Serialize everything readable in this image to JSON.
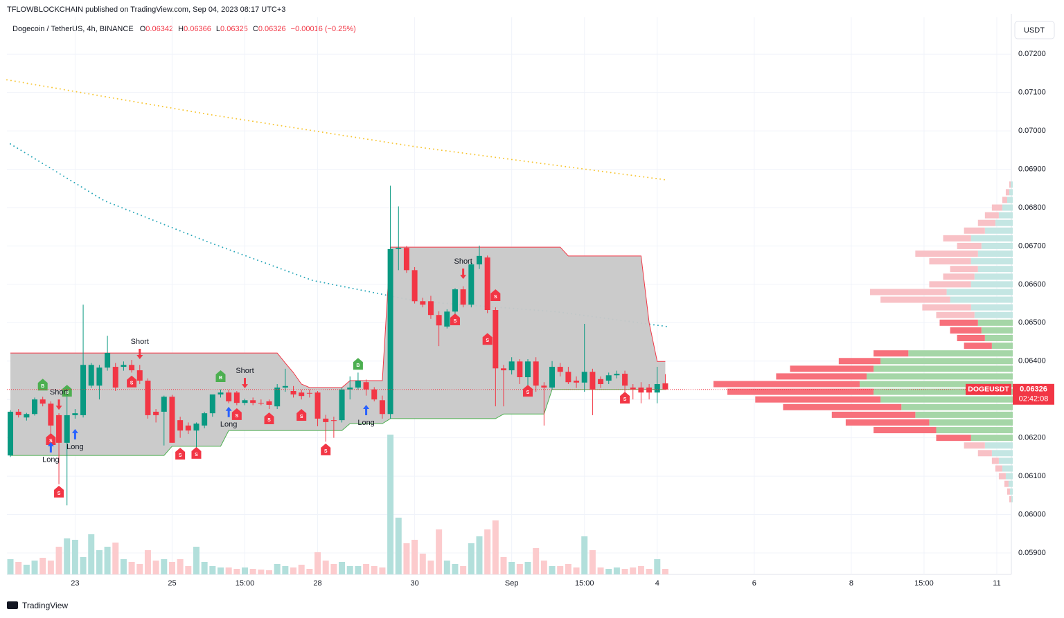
{
  "header": {
    "publisher": "TFLOWBLOCKCHAIN published on TradingView.com, Sep 04, 2023 08:17 UTC+3",
    "logo": "TradingView"
  },
  "chart_data": {
    "type": "candlestick",
    "symbol": "Dogecoin / TetherUS, 4h, BINANCE",
    "ohlc_labels": [
      "O",
      "H",
      "L",
      "C"
    ],
    "ohlc_values": [
      0.06342,
      0.06366,
      0.06325,
      0.06326
    ],
    "change": "−0.00016 (−0.25%)",
    "currency": "USDT",
    "last_label": {
      "ticker": "DOGEUSDT",
      "price": 0.06326,
      "countdown": "02:42:08"
    },
    "up_color": "#089981",
    "down_color": "#f23645",
    "volume_up_color": "#b2dfdb",
    "volume_down_color": "#fccbcd",
    "xlim": [
      -0.43,
      123.8
    ],
    "ylim": [
      0.05844,
      0.07296
    ],
    "yticks": [
      {
        "value": 0.059,
        "label": "0.05900"
      },
      {
        "value": 0.06,
        "label": "0.06000"
      },
      {
        "value": 0.061,
        "label": "0.06100"
      },
      {
        "value": 0.062,
        "label": "0.06200"
      },
      {
        "value": 0.063,
        "label": "0.06300"
      },
      {
        "value": 0.064,
        "label": "0.06400"
      },
      {
        "value": 0.065,
        "label": "0.06500"
      },
      {
        "value": 0.066,
        "label": "0.06600"
      },
      {
        "value": 0.067,
        "label": "0.06700"
      },
      {
        "value": 0.068,
        "label": "0.06800"
      },
      {
        "value": 0.069,
        "label": "0.06900"
      },
      {
        "value": 0.07,
        "label": "0.07000"
      },
      {
        "value": 0.071,
        "label": "0.07100"
      },
      {
        "value": 0.072,
        "label": "0.07200"
      }
    ],
    "xticks": [
      {
        "value": 8,
        "label": "23"
      },
      {
        "value": 20,
        "label": "25"
      },
      {
        "value": 29,
        "label": "15:00"
      },
      {
        "value": 38,
        "label": "28"
      },
      {
        "value": 50,
        "label": "30"
      },
      {
        "value": 62,
        "label": "Sep"
      },
      {
        "value": 71,
        "label": "15:00"
      },
      {
        "value": 80,
        "label": "4"
      },
      {
        "value": 92,
        "label": "6"
      },
      {
        "value": 104,
        "label": "8"
      },
      {
        "value": 113,
        "label": "15:00"
      },
      {
        "value": 122,
        "label": "11"
      }
    ],
    "grid": true,
    "open": [
      0.06154,
      0.06268,
      0.06253,
      0.06262,
      0.063,
      0.06289,
      0.06259,
      0.06187,
      0.06259,
      0.06259,
      0.06336,
      0.06336,
      0.06383,
      0.06385,
      0.06385,
      0.0639,
      0.06376,
      0.06349,
      0.06268,
      0.06268,
      0.06307,
      0.06246,
      0.06232,
      0.06219,
      0.06232,
      0.06264,
      0.06313,
      0.06318,
      0.06318,
      0.06291,
      0.06298,
      0.06291,
      0.06295,
      0.06282,
      0.06331,
      0.06322,
      0.06318,
      0.06317,
      0.06318,
      0.0625,
      0.06246,
      0.06246,
      0.06326,
      0.06331,
      0.06345,
      0.06326,
      0.06298,
      0.06262,
      0.06692,
      0.06695,
      0.06637,
      0.06556,
      0.06556,
      0.0652,
      0.0649,
      0.06529,
      0.06587,
      0.06547,
      0.06652,
      0.0667,
      0.06533,
      0.06381,
      0.06376,
      0.06399,
      0.06358,
      0.06399,
      0.06336,
      0.06331,
      0.06385,
      0.06372,
      0.06349,
      0.06344,
      0.06372,
      0.06353,
      0.06349,
      0.06363,
      0.06367,
      0.06331,
      0.06331,
      0.06331,
      0.06318,
      0.06342
    ],
    "high": [
      0.06272,
      0.06275,
      0.06265,
      0.06305,
      0.06307,
      0.06295,
      0.06264,
      0.06331,
      0.06275,
      0.06547,
      0.06395,
      0.0639,
      0.06466,
      0.06395,
      0.06399,
      0.06403,
      0.0639,
      0.06355,
      0.06275,
      0.0631,
      0.06312,
      0.06255,
      0.0624,
      0.0624,
      0.06268,
      0.06313,
      0.06326,
      0.06325,
      0.06322,
      0.06302,
      0.06305,
      0.063,
      0.063,
      0.0634,
      0.0638,
      0.06335,
      0.06325,
      0.06326,
      0.06322,
      0.0626,
      0.06255,
      0.06331,
      0.0636,
      0.0637,
      0.06352,
      0.06332,
      0.0631,
      0.06857,
      0.06803,
      0.067,
      0.06645,
      0.06565,
      0.0657,
      0.0653,
      0.06535,
      0.0659,
      0.06595,
      0.0666,
      0.06701,
      0.06675,
      0.0654,
      0.0639,
      0.0641,
      0.06405,
      0.06405,
      0.0641,
      0.06345,
      0.064,
      0.06395,
      0.06385,
      0.0636,
      0.06497,
      0.0638,
      0.0636,
      0.0637,
      0.06375,
      0.06375,
      0.0634,
      0.06345,
      0.0634,
      0.06385,
      0.06366
    ],
    "low": [
      0.0615,
      0.06253,
      0.06245,
      0.06258,
      0.06282,
      0.06187,
      0.06079,
      0.06024,
      0.0625,
      0.06253,
      0.0633,
      0.063,
      0.06375,
      0.06322,
      0.06375,
      0.0637,
      0.0634,
      0.0625,
      0.0624,
      0.0618,
      0.06187,
      0.062,
      0.0621,
      0.06175,
      0.06225,
      0.06255,
      0.06305,
      0.0629,
      0.06285,
      0.06285,
      0.06285,
      0.06285,
      0.06275,
      0.06275,
      0.0632,
      0.06305,
      0.063,
      0.06305,
      0.0623,
      0.0619,
      0.062,
      0.0624,
      0.063,
      0.06325,
      0.0631,
      0.06295,
      0.0625,
      0.0625,
      0.06637,
      0.0663,
      0.0655,
      0.0654,
      0.0651,
      0.06439,
      0.06485,
      0.0652,
      0.0654,
      0.0654,
      0.0664,
      0.06525,
      0.06282,
      0.06282,
      0.06365,
      0.0634,
      0.0633,
      0.0632,
      0.06232,
      0.06325,
      0.0636,
      0.0634,
      0.0633,
      0.0632,
      0.06259,
      0.0633,
      0.0634,
      0.06355,
      0.0632,
      0.063,
      0.0629,
      0.063,
      0.0629,
      0.06325
    ],
    "close": [
      0.06268,
      0.06259,
      0.06262,
      0.063,
      0.06289,
      0.06232,
      0.06187,
      0.06259,
      0.06264,
      0.0639,
      0.0639,
      0.06383,
      0.06421,
      0.06331,
      0.0639,
      0.06376,
      0.06349,
      0.06259,
      0.06259,
      0.06307,
      0.06187,
      0.06219,
      0.06219,
      0.06237,
      0.06264,
      0.06313,
      0.06318,
      0.06295,
      0.06291,
      0.06298,
      0.06291,
      0.0629,
      0.06286,
      0.06331,
      0.06335,
      0.06313,
      0.06309,
      0.06316,
      0.0625,
      0.06241,
      0.06244,
      0.06326,
      0.06331,
      0.06349,
      0.06326,
      0.063,
      0.06262,
      0.06692,
      0.06695,
      0.06637,
      0.06556,
      0.06547,
      0.0652,
      0.06493,
      0.06529,
      0.06587,
      0.06547,
      0.06652,
      0.06674,
      0.06533,
      0.06381,
      0.06376,
      0.06399,
      0.06358,
      0.06399,
      0.06336,
      0.06331,
      0.06385,
      0.06372,
      0.06345,
      0.06344,
      0.06372,
      0.06326,
      0.0634,
      0.06363,
      0.06367,
      0.06336,
      0.06326,
      0.06318,
      0.06318,
      0.0634,
      0.06326
    ],
    "volume": [
      22,
      18,
      14,
      20,
      24,
      20,
      40,
      52,
      50,
      25,
      58,
      35,
      40,
      46,
      22,
      18,
      15,
      35,
      20,
      22,
      18,
      22,
      12,
      40,
      18,
      12,
      10,
      10,
      8,
      10,
      8,
      7,
      6,
      15,
      12,
      10,
      14,
      8,
      32,
      20,
      15,
      18,
      12,
      12,
      15,
      12,
      10,
      202,
      82,
      45,
      50,
      30,
      20,
      65,
      20,
      15,
      12,
      45,
      55,
      65,
      78,
      25,
      18,
      15,
      18,
      38,
      20,
      12,
      12,
      15,
      10,
      55,
      35,
      10,
      8,
      10,
      8,
      10,
      12,
      8,
      22,
      8
    ],
    "band": {
      "fill": "#c8c8c8",
      "upper_color": "#f23645",
      "lower_color": "#4caf50",
      "upper": [
        0.06421,
        0.06421,
        0.06421,
        0.06421,
        0.06421,
        0.06421,
        0.06421,
        0.06421,
        0.06421,
        0.06421,
        0.06421,
        0.06421,
        0.06421,
        0.06421,
        0.06421,
        0.06421,
        0.06421,
        0.06421,
        0.06421,
        0.06421,
        0.06421,
        0.06421,
        0.06421,
        0.06421,
        0.06421,
        0.06421,
        0.06421,
        0.06421,
        0.06421,
        0.06421,
        0.06421,
        0.06421,
        0.06421,
        0.06421,
        0.06395,
        0.0637,
        0.0634,
        0.06331,
        0.06331,
        0.06331,
        0.06331,
        0.06331,
        0.06349,
        0.06349,
        0.06349,
        0.06349,
        0.06349,
        0.06697,
        0.06697,
        0.06697,
        0.06697,
        0.06697,
        0.06697,
        0.06697,
        0.06697,
        0.06697,
        0.06697,
        0.06697,
        0.06697,
        0.06697,
        0.06697,
        0.06697,
        0.06697,
        0.06697,
        0.06697,
        0.06697,
        0.06697,
        0.06697,
        0.06697,
        0.06674,
        0.06674,
        0.06674,
        0.06674,
        0.06674,
        0.06674,
        0.06674,
        0.06674,
        0.06674,
        0.06674,
        0.065,
        0.06399,
        0.06399
      ],
      "lower": [
        0.06154,
        0.06154,
        0.06154,
        0.06154,
        0.06154,
        0.06154,
        0.06154,
        0.06154,
        0.06154,
        0.06154,
        0.06154,
        0.06154,
        0.06154,
        0.06154,
        0.06154,
        0.06154,
        0.06154,
        0.06154,
        0.06154,
        0.06154,
        0.06178,
        0.06178,
        0.06178,
        0.06178,
        0.06178,
        0.06178,
        0.06178,
        0.06219,
        0.06219,
        0.06219,
        0.06219,
        0.06219,
        0.06219,
        0.06219,
        0.06219,
        0.06219,
        0.06219,
        0.06219,
        0.06219,
        0.06219,
        0.06219,
        0.06219,
        0.06237,
        0.06237,
        0.06237,
        0.06237,
        0.06237,
        0.0625,
        0.0625,
        0.0625,
        0.0625,
        0.0625,
        0.0625,
        0.0625,
        0.0625,
        0.0625,
        0.0625,
        0.0625,
        0.0625,
        0.0625,
        0.0625,
        0.06262,
        0.06262,
        0.06262,
        0.06262,
        0.06262,
        0.06262,
        0.06326,
        0.06326,
        0.06326,
        0.06326,
        0.06326,
        0.06326,
        0.06326,
        0.06326,
        0.06326,
        0.06326,
        0.06326,
        0.06326,
        0.06326,
        0.06326,
        0.06326
      ]
    },
    "averages": [
      {
        "color": "#f7c531",
        "x": [
          -0.43,
          24.5,
          50.3,
          81.2
        ],
        "values": [
          0.07133,
          0.07043,
          0.06958,
          0.06872
        ]
      },
      {
        "color": "#26a6b8",
        "x": [
          0,
          11.6,
          24.5,
          37.4,
          50.3,
          67.4,
          81.2
        ],
        "values": [
          0.06966,
          0.06818,
          0.0671,
          0.0661,
          0.06556,
          0.06529,
          0.0649
        ]
      }
    ],
    "signals": [
      {
        "x": 5,
        "y": 0.06194,
        "label": "S",
        "color": "#f23645"
      },
      {
        "x": 6,
        "y": 0.06057,
        "label": "S",
        "color": "#f23645"
      },
      {
        "x": 15,
        "y": 0.06344,
        "label": "S",
        "color": "#f23645"
      },
      {
        "x": 28,
        "y": 0.06259,
        "label": "S",
        "color": "#f23645"
      },
      {
        "x": 32,
        "y": 0.06248,
        "label": "S",
        "color": "#f23645"
      },
      {
        "x": 36,
        "y": 0.06257,
        "label": "S",
        "color": "#f23645"
      },
      {
        "x": 21,
        "y": 0.06156,
        "label": "S",
        "color": "#f23645"
      },
      {
        "x": 23,
        "y": 0.06158,
        "label": "S",
        "color": "#f23645"
      },
      {
        "x": 39,
        "y": 0.06167,
        "label": "S",
        "color": "#f23645"
      },
      {
        "x": 55,
        "y": 0.06506,
        "label": "S",
        "color": "#f23645"
      },
      {
        "x": 59,
        "y": 0.06455,
        "label": "S",
        "color": "#f23645"
      },
      {
        "x": 60,
        "y": 0.06569,
        "label": "S",
        "color": "#f23645"
      },
      {
        "x": 64,
        "y": 0.0632,
        "label": "S",
        "color": "#f23645"
      },
      {
        "x": 76,
        "y": 0.06302,
        "label": "S",
        "color": "#f23645"
      },
      {
        "x": 4,
        "y": 0.06336,
        "label": "B",
        "color": "#4caf50"
      },
      {
        "x": 7,
        "y": 0.0632,
        "label": "B",
        "color": "#4caf50"
      },
      {
        "x": 26,
        "y": 0.06358,
        "label": "B",
        "color": "#4caf50"
      },
      {
        "x": 43,
        "y": 0.0639,
        "label": "B",
        "color": "#4caf50"
      },
      {
        "x": 6,
        "y": 0.06318,
        "label": "Short",
        "color": "#f23645"
      },
      {
        "x": 16,
        "y": 0.0645,
        "label": "Short",
        "color": "#f23645"
      },
      {
        "x": 29,
        "y": 0.06374,
        "label": "Short",
        "color": "#f23645"
      },
      {
        "x": 56,
        "y": 0.06659,
        "label": "Short",
        "color": "#f23645"
      },
      {
        "x": 5,
        "y": 0.06142,
        "label": "Long",
        "color": "#2962ff"
      },
      {
        "x": 8,
        "y": 0.06176,
        "label": "Long",
        "color": "#2962ff"
      },
      {
        "x": 27,
        "y": 0.06234,
        "label": "Long",
        "color": "#2962ff"
      },
      {
        "x": 44,
        "y": 0.06239,
        "label": "Long",
        "color": "#2962ff"
      }
    ],
    "profile": {
      "value_area": [
        0.062,
        0.065
      ],
      "colors": {
        "inside_sell": "#f7707b",
        "inside_buy": "#a5d6a7",
        "outside_sell": "#f8c1c6",
        "outside_buy": "#c4e6e3"
      },
      "price": [
        0.0686,
        0.0684,
        0.0682,
        0.068,
        0.0678,
        0.0676,
        0.0674,
        0.0672,
        0.067,
        0.0668,
        0.0666,
        0.0664,
        0.0662,
        0.066,
        0.0658,
        0.0656,
        0.0654,
        0.0652,
        0.065,
        0.0648,
        0.0646,
        0.0644,
        0.0642,
        0.064,
        0.0638,
        0.0636,
        0.0634,
        0.0632,
        0.063,
        0.0628,
        0.0626,
        0.0624,
        0.0622,
        0.062,
        0.0618,
        0.0616,
        0.0614,
        0.0612,
        0.061,
        0.0608,
        0.0606,
        0.0604
      ],
      "buy": [
        3,
        5,
        8,
        15,
        20,
        25,
        40,
        60,
        45,
        50,
        60,
        50,
        55,
        60,
        95,
        90,
        60,
        55,
        50,
        45,
        40,
        30,
        150,
        190,
        200,
        210,
        220,
        200,
        190,
        160,
        140,
        120,
        110,
        60,
        40,
        30,
        20,
        15,
        10,
        6,
        4,
        2
      ],
      "sell": [
        2,
        5,
        7,
        15,
        20,
        25,
        30,
        40,
        35,
        90,
        60,
        40,
        45,
        60,
        110,
        100,
        70,
        55,
        55,
        45,
        40,
        40,
        50,
        60,
        120,
        130,
        210,
        210,
        180,
        170,
        120,
        120,
        90,
        50,
        30,
        20,
        10,
        10,
        10,
        6,
        4,
        3
      ]
    }
  }
}
